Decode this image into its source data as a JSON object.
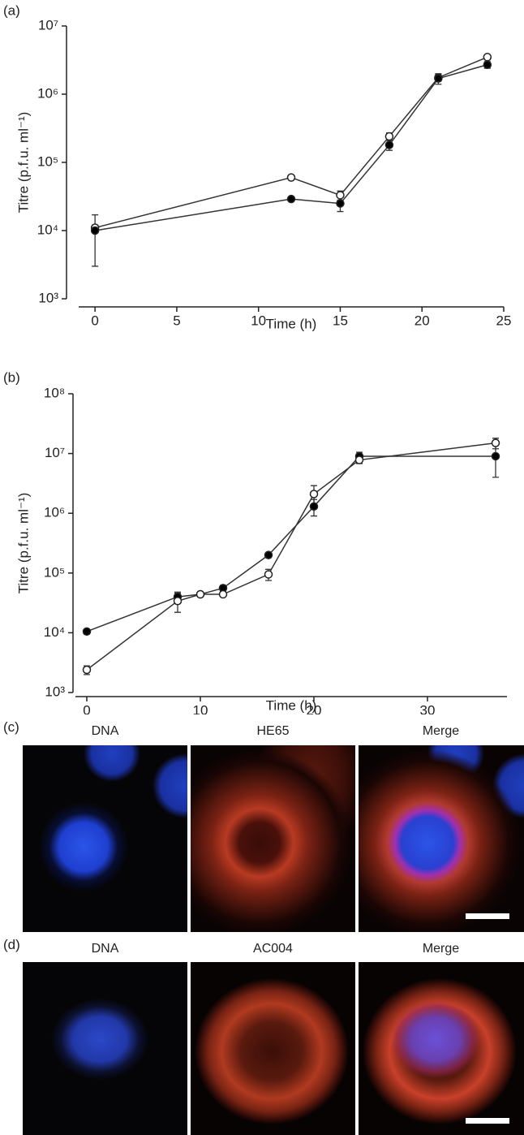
{
  "chart_data": [
    {
      "type": "line",
      "panel": "(a)",
      "x_label": "Time (h)",
      "y_label": "Titre (p.f.u. ml⁻¹)",
      "log_scale": true,
      "x": [
        0,
        12,
        15,
        18,
        21,
        24
      ],
      "series": [
        {
          "color": "#ffffff",
          "values": [
            11000,
            60000,
            33000,
            240000,
            1750000,
            3500000
          ],
          "errors": [
            1000,
            3000,
            5000,
            30000,
            200000,
            300000
          ]
        },
        {
          "color": "#000000",
          "values": [
            10000,
            29000,
            25000,
            180000,
            1700000,
            2700000
          ],
          "errors": [
            7000,
            1500,
            6000,
            30000,
            300000,
            300000
          ]
        }
      ],
      "xlim": [
        -1,
        25
      ],
      "xticks": [
        0,
        5,
        10,
        15,
        20,
        25
      ],
      "ylim": [
        1000,
        10000000
      ],
      "yticks": [
        {
          "value": 1000,
          "label": "10³"
        },
        {
          "value": 10000,
          "label": "10⁴"
        },
        {
          "value": 100000,
          "label": "10⁵"
        },
        {
          "value": 1000000,
          "label": "10⁶"
        },
        {
          "value": 10000000,
          "label": "10⁷"
        }
      ]
    },
    {
      "type": "line",
      "panel": "(b)",
      "x_label": "Time (h)",
      "y_label": "Titre (p.f.u. ml⁻¹)",
      "log_scale": true,
      "x": [
        0,
        8,
        10,
        12,
        16,
        20,
        24,
        36
      ],
      "series": [
        {
          "color": "#000000",
          "values": [
            10500,
            40000,
            44000,
            56000,
            200000,
            1300000,
            9000000,
            9000000
          ],
          "errors": [
            1000,
            8000,
            3000,
            6000,
            15000,
            400000,
            1500000,
            5000000
          ]
        },
        {
          "color": "#ffffff",
          "values": [
            2400,
            34000,
            44000,
            44000,
            95000,
            2100000,
            7800000,
            15000000
          ],
          "errors": [
            400,
            12000,
            3000,
            3000,
            20000,
            800000,
            1000000,
            3000000
          ]
        }
      ],
      "xlim": [
        -1,
        37
      ],
      "xticks": [
        0,
        10,
        20,
        30
      ],
      "ylim": [
        1000,
        100000000
      ],
      "yticks": [
        {
          "value": 1000,
          "label": "10³"
        },
        {
          "value": 10000,
          "label": "10⁴"
        },
        {
          "value": 100000,
          "label": "10⁵"
        },
        {
          "value": 1000000,
          "label": "10⁶"
        },
        {
          "value": 10000000,
          "label": "10⁷"
        },
        {
          "value": 100000000,
          "label": "10⁸"
        }
      ]
    }
  ],
  "images": [
    {
      "panel": "(c)",
      "columns": [
        "DNA",
        "HE65",
        "Merge"
      ]
    },
    {
      "panel": "(d)",
      "columns": [
        "DNA",
        "AC004",
        "Merge"
      ]
    }
  ]
}
